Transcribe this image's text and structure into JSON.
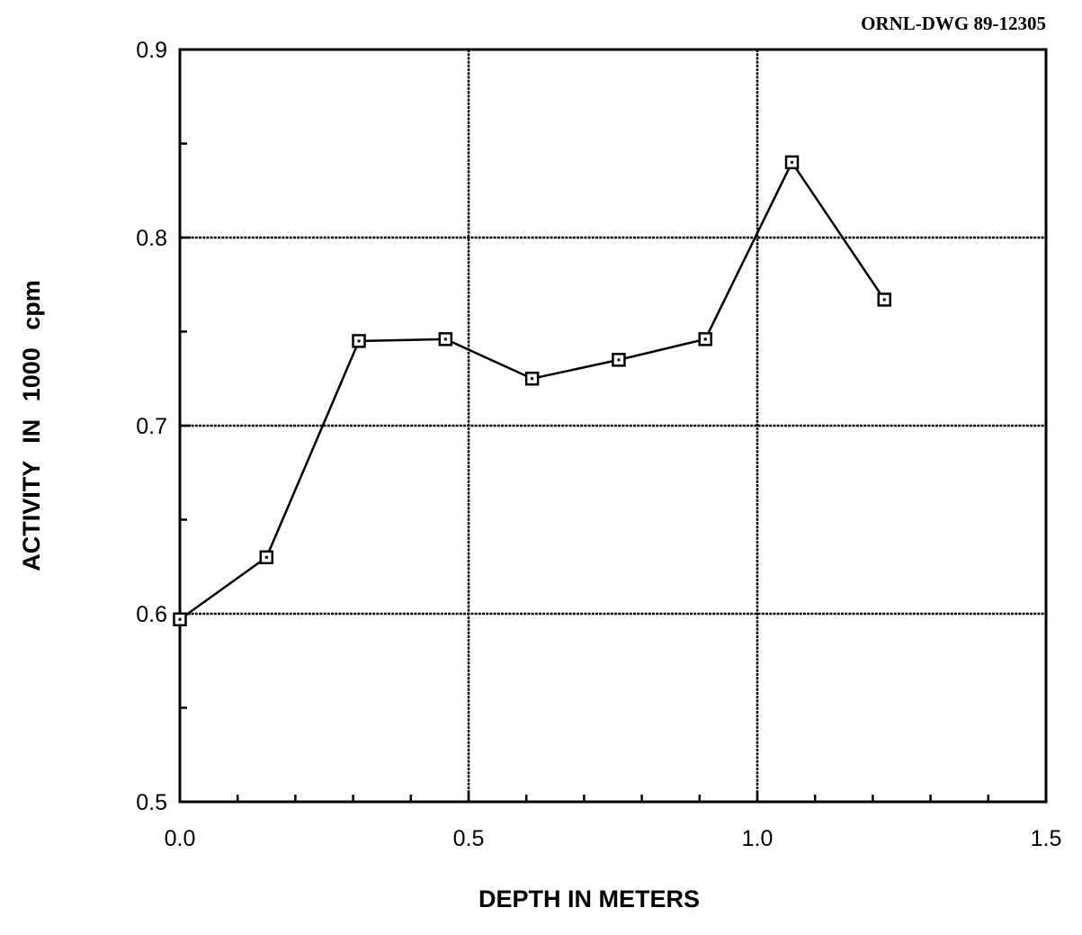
{
  "drawing_number": "ORNL-DWG 89-12305",
  "chart_data": {
    "type": "line",
    "title": "",
    "xlabel": "DEPTH IN METERS",
    "ylabel": "ACTIVITY IN 1000 cpm",
    "xlim": [
      0.0,
      1.5
    ],
    "ylim": [
      0.5,
      0.9
    ],
    "x_ticks": [
      "0.0",
      "0.5",
      "1.0",
      "1.5"
    ],
    "y_ticks": [
      "0.5",
      "0.6",
      "0.7",
      "0.8",
      "0.9"
    ],
    "grid": true,
    "legend": "none",
    "series": [
      {
        "x": [
          0.0,
          0.15,
          0.31,
          0.46,
          0.61,
          0.76,
          0.91,
          1.06,
          1.22
        ],
        "y": [
          0.597,
          0.63,
          0.745,
          0.746,
          0.725,
          0.735,
          0.746,
          0.84,
          0.767
        ]
      }
    ]
  }
}
